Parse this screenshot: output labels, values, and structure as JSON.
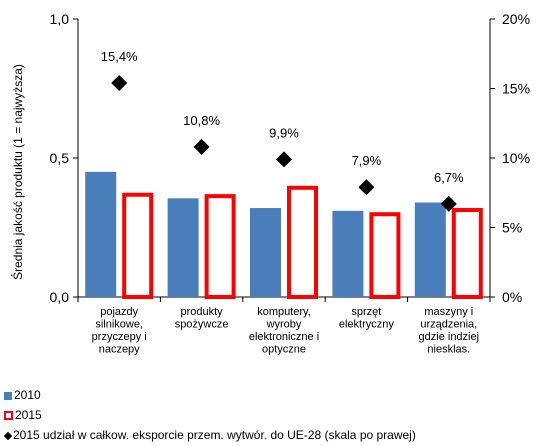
{
  "chart_data": {
    "type": "bar",
    "ylabel": "Średnia jakość produktu  (1 = najwyższa)",
    "y_left": {
      "min": 0,
      "max": 1,
      "ticks": [
        "0,0",
        "0,5",
        "1,0"
      ],
      "tick_values": [
        0,
        0.5,
        1
      ]
    },
    "y_right": {
      "min": 0,
      "max": 20,
      "ticks": [
        "0%",
        "5%",
        "10%",
        "15%",
        "20%"
      ],
      "tick_values": [
        0,
        5,
        10,
        15,
        20
      ]
    },
    "categories": [
      [
        "pojazdy",
        "silnikowe,",
        "przyczepy i",
        "naczepy"
      ],
      [
        "produkty",
        "spożywcze"
      ],
      [
        "komputery,",
        "wyroby",
        "elektroniczne i",
        "optyczne"
      ],
      [
        "sprzęt",
        "elektryczny"
      ],
      [
        "maszyny i",
        "urządzenia,",
        "gdzie indziej",
        "niesklas."
      ]
    ],
    "series": [
      {
        "name": "2010",
        "axis": "left",
        "kind": "bar",
        "color": "#4a7ebb",
        "values": [
          0.45,
          0.355,
          0.32,
          0.31,
          0.34
        ]
      },
      {
        "name": "2015",
        "axis": "left",
        "kind": "bar-outline",
        "color": "#ff0000",
        "values": [
          0.375,
          0.37,
          0.4,
          0.305,
          0.32
        ]
      },
      {
        "name": "2015 udział w całkow. eksporcie przem. wytwór. do UE-28 (skala po prawej)",
        "axis": "right",
        "kind": "marker",
        "color": "#000000",
        "values": [
          15.4,
          10.8,
          9.9,
          7.9,
          6.7
        ],
        "labels": [
          "15,4%",
          "10,8%",
          "9,9%",
          "7,9%",
          "6,7%"
        ]
      }
    ],
    "legend_placement": "bottom-left",
    "grid": false
  }
}
